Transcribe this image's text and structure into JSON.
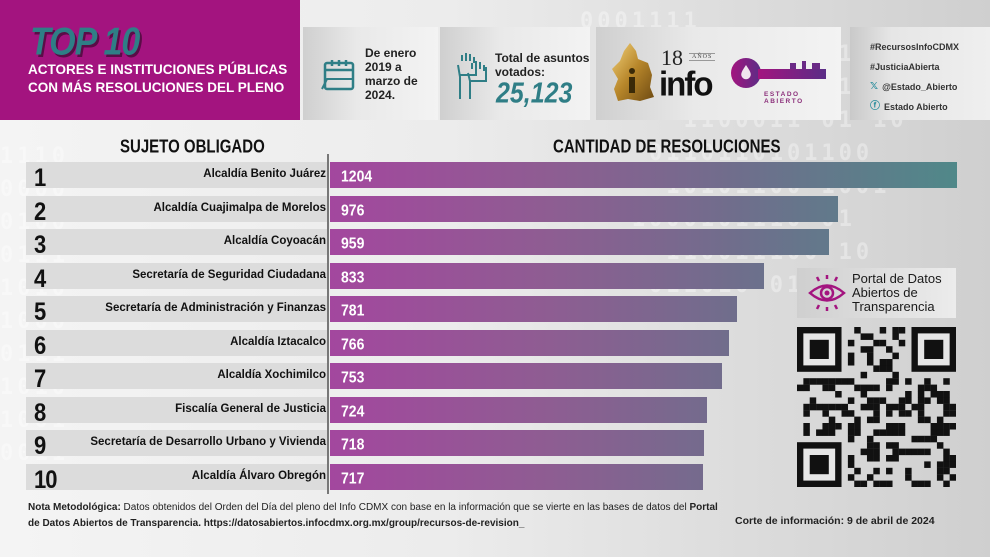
{
  "header": {
    "badge": "TOP 10",
    "subtitle_line1": "ACTORES E INSTITUCIONES PÚBLICAS",
    "subtitle_line2": "CON MÁS RESOLUCIONES DEL PLENO",
    "period": [
      "De enero",
      "2019 a",
      "marzo de",
      "2024."
    ],
    "votes_label_line1": "Total de asuntos",
    "votes_label_line2": "votados:",
    "votes_value": "25,123",
    "logo_info": {
      "number": "18",
      "anos": "AÑOS",
      "word": "info"
    },
    "logo_estado": "ESTADO ABIERTO",
    "social": [
      {
        "icon": "hashtag",
        "text": "#RecursosInfoCDMX"
      },
      {
        "icon": "hashtag",
        "text": "#JusticiaAbierta"
      },
      {
        "icon": "x-icon",
        "text": "@Estado_Abierto"
      },
      {
        "icon": "facebook-icon",
        "text": "Estado Abierto"
      }
    ]
  },
  "colors": {
    "brand_magenta": "#a3147f",
    "teal": "#2f7e86",
    "bar_start": "#a3479e",
    "bar_end": "#508889"
  },
  "chart_data": {
    "type": "bar",
    "orientation": "horizontal",
    "xlabel": "CANTIDAD DE RESOLUCIONES",
    "ylabel": "SUJETO OBLIGADO",
    "xlim": [
      0,
      1204
    ],
    "categories": [
      "Alcaldía Benito Juárez",
      "Alcaldía Cuajimalpa de Morelos",
      "Alcaldía Coyoacán",
      "Secretaría de Seguridad Ciudadana",
      "Secretaría de Administración y Finanzas",
      "Alcaldía Iztacalco",
      "Alcaldía Xochimilco",
      "Fiscalía General de Justicia",
      "Secretaría de Desarrollo Urbano y Vivienda",
      "Alcaldía Álvaro Obregón"
    ],
    "ranks": [
      "1",
      "2",
      "3",
      "4",
      "5",
      "6",
      "7",
      "8",
      "9",
      "10"
    ],
    "values": [
      1204,
      976,
      959,
      833,
      781,
      766,
      753,
      724,
      718,
      717
    ]
  },
  "portal": {
    "line1": "Portal de Datos",
    "line2": "Abiertos de",
    "line3": "Transparencia"
  },
  "footer": {
    "note_label": "Nota Metodológica:",
    "note_text": " Datos obtenidos del Orden del Día del pleno del Info CDMX con base en la información que se vierte en las bases de datos del ",
    "note_portal": "Portal de Datos Abiertos de Transparencia. https://datosabiertos.infocdmx.org.mx/group/recursos-de-revision_",
    "cutoff": "Corte de información: 9 de abril de 2024"
  }
}
